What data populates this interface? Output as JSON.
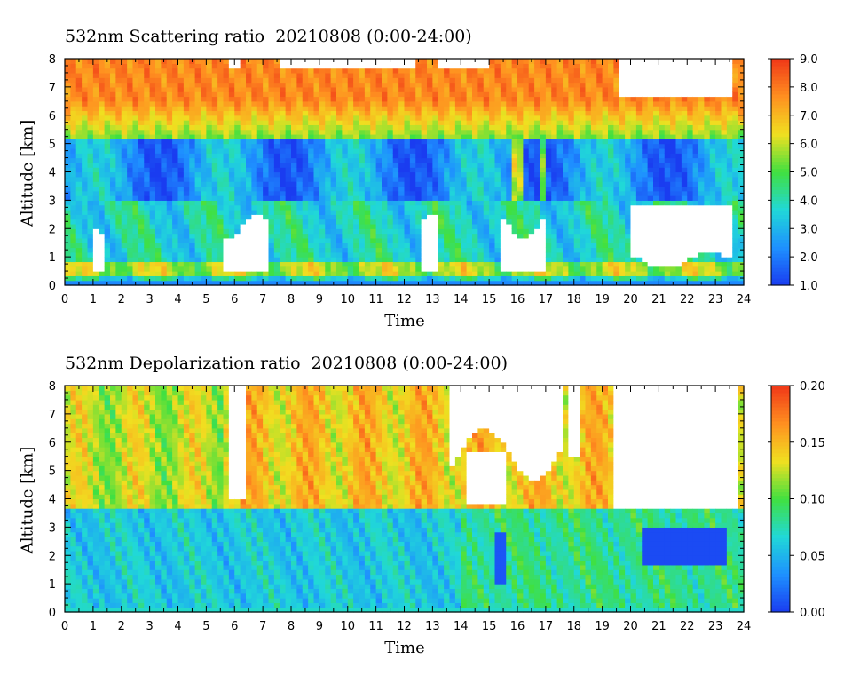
{
  "chart_data": [
    {
      "type": "heatmap",
      "title": "532nm Scattering ratio  20210808 (0:00-24:00)",
      "xlabel": "Time",
      "ylabel": "Altitude [km]",
      "xlim": [
        0,
        24
      ],
      "ylim": [
        0,
        8
      ],
      "x_ticks": [
        "0",
        "1",
        "2",
        "3",
        "4",
        "5",
        "6",
        "7",
        "8",
        "9",
        "10",
        "11",
        "12",
        "13",
        "14",
        "15",
        "16",
        "17",
        "18",
        "19",
        "20",
        "21",
        "22",
        "23",
        "24"
      ],
      "y_ticks": [
        "0",
        "1",
        "2",
        "3",
        "4",
        "5",
        "6",
        "7",
        "8"
      ],
      "colorbar": {
        "range": [
          1.0,
          9.0
        ],
        "ticks": [
          "1.0",
          "2.0",
          "3.0",
          "4.0",
          "5.0",
          "6.0",
          "7.0",
          "8.0",
          "9.0"
        ]
      },
      "colormap": [
        "#1a3cf0",
        "#1e90ff",
        "#20d8d8",
        "#40e040",
        "#f0e020",
        "#ff9020",
        "#f03818"
      ],
      "missing_color": "#ffffff"
    },
    {
      "type": "heatmap",
      "title": "532nm Depolarization ratio  20210808 (0:00-24:00)",
      "xlabel": "Time",
      "ylabel": "Altitude [km]",
      "xlim": [
        0,
        24
      ],
      "ylim": [
        0,
        8
      ],
      "x_ticks": [
        "0",
        "1",
        "2",
        "3",
        "4",
        "5",
        "6",
        "7",
        "8",
        "9",
        "10",
        "11",
        "12",
        "13",
        "14",
        "15",
        "16",
        "17",
        "18",
        "19",
        "20",
        "21",
        "22",
        "23",
        "24"
      ],
      "y_ticks": [
        "0",
        "1",
        "2",
        "3",
        "4",
        "5",
        "6",
        "7",
        "8"
      ],
      "colorbar": {
        "range": [
          0.0,
          0.2
        ],
        "ticks": [
          "0.00",
          "0.05",
          "0.10",
          "0.15",
          "0.20"
        ]
      },
      "colormap": [
        "#1a3cf0",
        "#1e90ff",
        "#20d8d8",
        "#40e040",
        "#f0e020",
        "#ff9020",
        "#f03818"
      ],
      "missing_color": "#ffffff"
    }
  ]
}
